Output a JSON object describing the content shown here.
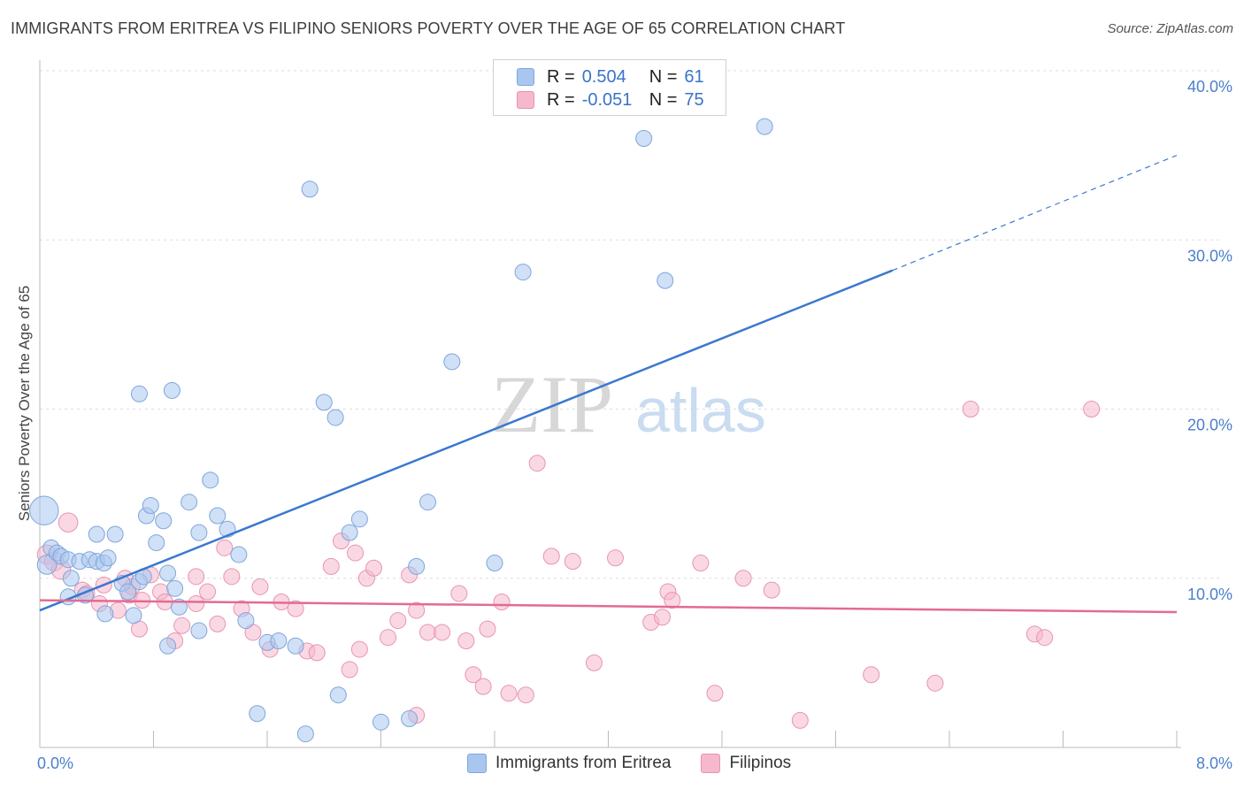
{
  "title": "IMMIGRANTS FROM ERITREA VS FILIPINO SENIORS POVERTY OVER THE AGE OF 65 CORRELATION CHART",
  "source": "Source: ZipAtlas.com",
  "watermark": {
    "zip": "ZIP",
    "atlas": "atlas"
  },
  "legend": {
    "rows": [
      {
        "r_label": "R =",
        "r_value": "0.504",
        "n_label": "N =",
        "n_value": "61",
        "color": "#a9c7ee"
      },
      {
        "r_label": "R =",
        "r_value": "-0.051",
        "n_label": "N =",
        "n_value": "75",
        "color": "#f6b8cc"
      }
    ]
  },
  "bottom_legend": [
    {
      "label": "Immigrants from Eritrea",
      "color": "#a9c7ee"
    },
    {
      "label": "Filipinos",
      "color": "#f6b8cc"
    }
  ],
  "colors": {
    "blue": "#3a78d0",
    "pink": "#e36b93",
    "blue_fill": "#a9c7ee",
    "pink_fill": "#f6b8cc",
    "grid": "#dddddd"
  },
  "chart_data": {
    "type": "scatter",
    "title": "IMMIGRANTS FROM ERITREA VS FILIPINO SENIORS POVERTY OVER THE AGE OF 65 CORRELATION CHART",
    "xlabel": "",
    "ylabel": "Seniors Poverty Over the Age of 65",
    "xlim": [
      0,
      8
    ],
    "ylim": [
      0,
      40
    ],
    "x_tick_labels": [
      "0.0%",
      "8.0%"
    ],
    "y_ticks": [
      10,
      20,
      30,
      40
    ],
    "y_tick_labels": [
      "10.0%",
      "20.0%",
      "30.0%",
      "40.0%"
    ],
    "grid": true,
    "series": [
      {
        "name": "Immigrants from Eritrea",
        "color": "#a9c7ee",
        "trend": {
          "x0": 0,
          "y0": 8.1,
          "x1": 6.0,
          "y1": 28.2,
          "dashed_to_x": 8.0,
          "dashed_to_y": 35.0
        },
        "points": [
          [
            0.03,
            14.0,
            1.8
          ],
          [
            0.05,
            10.8,
            1.2
          ],
          [
            0.08,
            11.8,
            1.0
          ],
          [
            0.12,
            11.5,
            1.0
          ],
          [
            0.15,
            11.3,
            1.0
          ],
          [
            0.2,
            11.1,
            1.0
          ],
          [
            0.22,
            10.0,
            1.0
          ],
          [
            0.28,
            11.0,
            1.0
          ],
          [
            0.2,
            8.9,
            1.0
          ],
          [
            0.32,
            9.0,
            1.0
          ],
          [
            0.35,
            11.1,
            1.0
          ],
          [
            0.4,
            11.0,
            1.0
          ],
          [
            0.45,
            10.9,
            1.0
          ],
          [
            0.48,
            11.2,
            1.0
          ],
          [
            0.4,
            12.6,
            1.0
          ],
          [
            0.53,
            12.6,
            1.0
          ],
          [
            0.46,
            7.9,
            1.0
          ],
          [
            0.58,
            9.7,
            1.0
          ],
          [
            0.62,
            9.2,
            1.0
          ],
          [
            0.66,
            7.8,
            1.0
          ],
          [
            0.7,
            9.8,
            1.0
          ],
          [
            0.73,
            10.1,
            1.0
          ],
          [
            0.75,
            13.7,
            1.0
          ],
          [
            0.78,
            14.3,
            1.0
          ],
          [
            0.82,
            12.1,
            1.0
          ],
          [
            0.87,
            13.4,
            1.0
          ],
          [
            0.9,
            10.3,
            1.0
          ],
          [
            0.95,
            9.4,
            1.0
          ],
          [
            0.98,
            8.3,
            1.0
          ],
          [
            1.05,
            14.5,
            1.0
          ],
          [
            1.12,
            12.7,
            1.0
          ],
          [
            1.2,
            15.8,
            1.0
          ],
          [
            1.25,
            13.7,
            1.0
          ],
          [
            1.32,
            12.9,
            1.0
          ],
          [
            1.4,
            11.4,
            1.0
          ],
          [
            1.45,
            7.5,
            1.0
          ],
          [
            1.53,
            2.0,
            1.0
          ],
          [
            1.6,
            6.2,
            1.0
          ],
          [
            1.68,
            6.3,
            1.0
          ],
          [
            1.8,
            6.0,
            1.0
          ],
          [
            1.87,
            0.8,
            1.0
          ],
          [
            1.12,
            6.9,
            1.0
          ],
          [
            0.9,
            6.0,
            1.0
          ],
          [
            0.7,
            20.9,
            1.0
          ],
          [
            0.93,
            21.1,
            1.0
          ],
          [
            1.9,
            33.0,
            1.0
          ],
          [
            2.0,
            20.4,
            1.0
          ],
          [
            2.08,
            19.5,
            1.0
          ],
          [
            2.1,
            3.1,
            1.0
          ],
          [
            2.18,
            12.7,
            1.0
          ],
          [
            2.25,
            13.5,
            1.0
          ],
          [
            2.4,
            1.5,
            1.0
          ],
          [
            2.6,
            1.7,
            1.0
          ],
          [
            2.73,
            14.5,
            1.0
          ],
          [
            2.9,
            22.8,
            1.0
          ],
          [
            3.2,
            10.9,
            1.0
          ],
          [
            3.4,
            28.1,
            1.0
          ],
          [
            4.25,
            36.0,
            1.0
          ],
          [
            4.4,
            27.6,
            1.0
          ],
          [
            5.1,
            36.7,
            1.0
          ],
          [
            2.65,
            10.7,
            1.0
          ]
        ]
      },
      {
        "name": "Filipinos",
        "color": "#f6b8cc",
        "trend": {
          "x0": 0,
          "y0": 8.7,
          "x1": 8.0,
          "y1": 8.0
        },
        "points": [
          [
            0.05,
            11.4,
            1.2
          ],
          [
            0.1,
            11.0,
            1.2
          ],
          [
            0.15,
            10.5,
            1.2
          ],
          [
            0.2,
            13.3,
            1.2
          ],
          [
            0.3,
            9.3,
            1.0
          ],
          [
            0.33,
            9.1,
            1.0
          ],
          [
            0.42,
            8.5,
            1.0
          ],
          [
            0.45,
            9.6,
            1.0
          ],
          [
            0.6,
            10.0,
            1.0
          ],
          [
            0.63,
            9.0,
            1.0
          ],
          [
            0.7,
            7.0,
            1.0
          ],
          [
            0.72,
            8.7,
            1.0
          ],
          [
            0.78,
            10.2,
            1.0
          ],
          [
            0.85,
            9.2,
            1.0
          ],
          [
            0.88,
            8.6,
            1.0
          ],
          [
            0.95,
            6.3,
            1.0
          ],
          [
            1.0,
            7.2,
            1.0
          ],
          [
            1.1,
            10.1,
            1.0
          ],
          [
            1.18,
            9.2,
            1.0
          ],
          [
            1.25,
            7.3,
            1.0
          ],
          [
            1.3,
            11.8,
            1.0
          ],
          [
            1.35,
            10.1,
            1.0
          ],
          [
            1.42,
            8.2,
            1.0
          ],
          [
            1.5,
            6.8,
            1.0
          ],
          [
            1.55,
            9.5,
            1.0
          ],
          [
            1.62,
            5.8,
            1.0
          ],
          [
            1.7,
            8.6,
            1.0
          ],
          [
            1.8,
            8.2,
            1.0
          ],
          [
            1.88,
            5.7,
            1.0
          ],
          [
            1.95,
            5.6,
            1.0
          ],
          [
            2.05,
            10.7,
            1.0
          ],
          [
            2.12,
            12.2,
            1.0
          ],
          [
            2.18,
            4.6,
            1.0
          ],
          [
            2.22,
            11.5,
            1.0
          ],
          [
            2.3,
            10.0,
            1.0
          ],
          [
            2.35,
            10.6,
            1.0
          ],
          [
            2.45,
            6.5,
            1.0
          ],
          [
            2.52,
            7.5,
            1.0
          ],
          [
            2.6,
            10.2,
            1.0
          ],
          [
            2.65,
            8.1,
            1.0
          ],
          [
            2.73,
            6.8,
            1.0
          ],
          [
            2.83,
            6.8,
            1.0
          ],
          [
            2.95,
            9.1,
            1.0
          ],
          [
            3.0,
            6.3,
            1.0
          ],
          [
            3.05,
            4.3,
            1.0
          ],
          [
            3.12,
            3.6,
            1.0
          ],
          [
            3.15,
            7.0,
            1.0
          ],
          [
            3.25,
            8.6,
            1.0
          ],
          [
            3.3,
            3.2,
            1.0
          ],
          [
            3.42,
            3.1,
            1.0
          ],
          [
            3.5,
            16.8,
            1.0
          ],
          [
            3.6,
            11.3,
            1.0
          ],
          [
            3.75,
            11.0,
            1.0
          ],
          [
            3.9,
            5.0,
            1.0
          ],
          [
            4.05,
            11.2,
            1.0
          ],
          [
            4.3,
            7.4,
            1.0
          ],
          [
            4.38,
            7.7,
            1.0
          ],
          [
            4.42,
            9.2,
            1.0
          ],
          [
            4.45,
            8.7,
            1.0
          ],
          [
            4.65,
            10.9,
            1.0
          ],
          [
            4.75,
            3.2,
            1.0
          ],
          [
            4.95,
            10.0,
            1.0
          ],
          [
            5.15,
            9.3,
            1.0
          ],
          [
            5.35,
            1.6,
            1.0
          ],
          [
            5.85,
            4.3,
            1.0
          ],
          [
            6.3,
            3.8,
            1.0
          ],
          [
            6.55,
            20.0,
            1.0
          ],
          [
            7.0,
            6.7,
            1.0
          ],
          [
            7.07,
            6.5,
            1.0
          ],
          [
            7.4,
            20.0,
            1.0
          ],
          [
            2.65,
            1.9,
            1.0
          ],
          [
            2.25,
            5.8,
            1.0
          ],
          [
            1.1,
            8.5,
            1.0
          ],
          [
            0.55,
            8.1,
            1.0
          ],
          [
            0.65,
            9.5,
            1.0
          ]
        ]
      }
    ]
  }
}
